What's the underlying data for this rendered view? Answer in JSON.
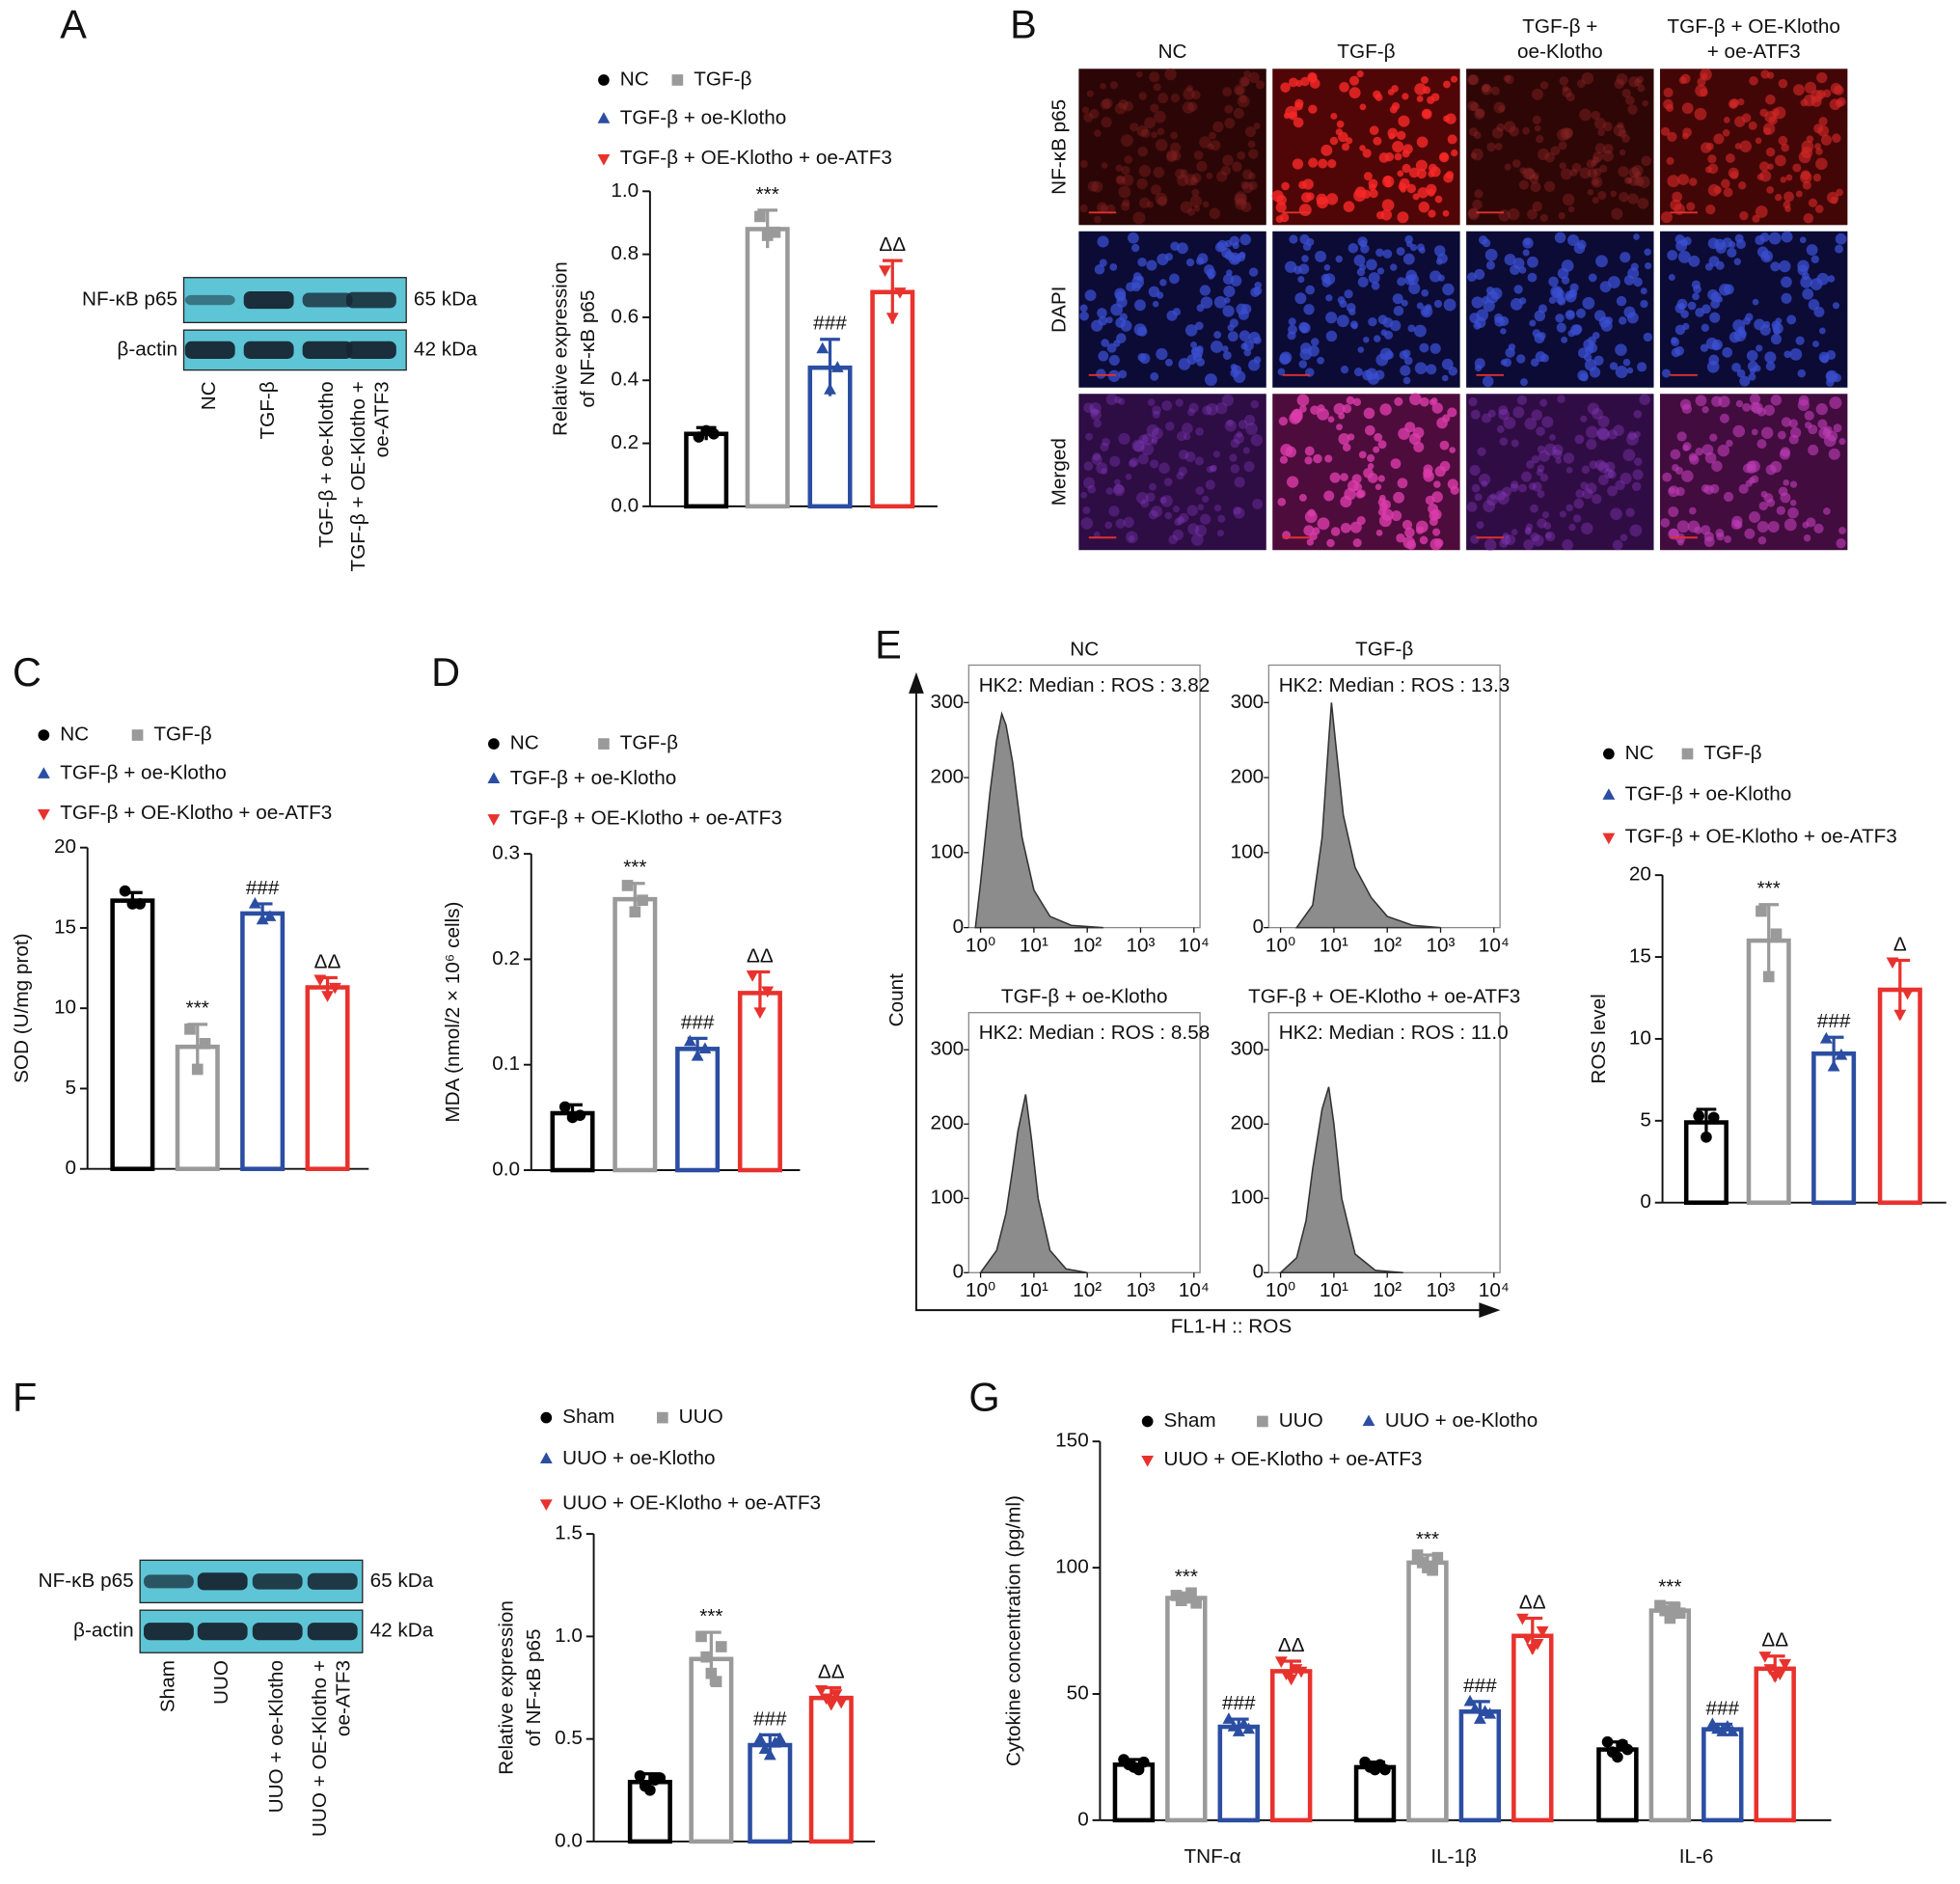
{
  "panel_letters": [
    "A",
    "B",
    "C",
    "D",
    "E",
    "F",
    "G"
  ],
  "blots": [
    {
      "rows": [
        {
          "label": "NF-κB p65",
          "size": "65 kDa"
        },
        {
          "label": "β-actin",
          "size": "42 kDa"
        }
      ],
      "lanes": [
        [
          "NC"
        ],
        [
          "TGF-β"
        ],
        [
          "TGF-β + oe-Klotho"
        ],
        [
          "TGF-β + OE-Klotho +",
          "oe-ATF3"
        ]
      ]
    },
    {
      "rows": [
        {
          "label": "NF-κB p65",
          "size": "65 kDa"
        },
        {
          "label": "β-actin",
          "size": "42 kDa"
        }
      ],
      "lanes": [
        [
          "Sham"
        ],
        [
          "UUO"
        ],
        [
          "UUO + oe-Klotho"
        ],
        [
          "UUO + OE-Klotho +",
          "oe-ATF3"
        ]
      ]
    }
  ],
  "micrographs": {
    "columns": [
      [
        "NC"
      ],
      [
        "TGF-β"
      ],
      [
        "TGF-β +",
        "oe-Klotho"
      ],
      [
        "TGF-β + OE-Klotho",
        "+ oe-ATF3"
      ]
    ],
    "rows": [
      "NF-κB p65",
      "DAPI",
      "Merged"
    ]
  },
  "flow_axes": {
    "ylabel": "Count",
    "xlabel": "FL1-H :: ROS"
  },
  "chart_data": [
    {
      "type": "bar",
      "ylabel": [
        "Relative expression",
        "of NF-κB p65"
      ],
      "ylim": [
        0,
        1.0
      ],
      "yticks": [
        {
          "value": 0,
          "label": "0.0"
        },
        0.2,
        0.4,
        0.6,
        0.8,
        {
          "value": 1,
          "label": "1.0"
        }
      ],
      "series": [
        {
          "name": "NC",
          "color": "#000000",
          "marker": "circle",
          "values": [
            0.23
          ],
          "errors": [
            0.02
          ],
          "points": [
            0.22,
            0.24,
            0.23
          ]
        },
        {
          "name": "TGF-β",
          "color": "#9a9a9a",
          "marker": "square",
          "values": [
            0.88
          ],
          "errors": [
            0.06
          ],
          "points": [
            0.92,
            0.86,
            0.87
          ],
          "annotation": "***"
        },
        {
          "name": "TGF-β + oe-Klotho",
          "color": "#2b4ea2",
          "marker": "triangle-up",
          "values": [
            0.44
          ],
          "errors": [
            0.09
          ],
          "points": [
            0.5,
            0.37,
            0.44
          ],
          "annotation": "###"
        },
        {
          "name": "TGF-β + OE-Klotho + oe-ATF3",
          "color": "#e8322d",
          "marker": "triangle-down",
          "values": [
            0.68
          ],
          "errors": [
            0.1
          ],
          "points": [
            0.75,
            0.6,
            0.68
          ],
          "annotation": "ΔΔ"
        }
      ]
    },
    {
      "type": "bar",
      "ylabel": [
        "SOD (U/mg prot)"
      ],
      "ylim": [
        0,
        20
      ],
      "yticks": [
        0,
        5,
        10,
        15,
        20
      ],
      "series": [
        {
          "name": "NC",
          "color": "#000000",
          "marker": "circle",
          "values": [
            16.7
          ],
          "errors": [
            0.5
          ],
          "points": [
            17.3,
            16.5,
            16.5
          ]
        },
        {
          "name": "TGF-β",
          "color": "#9a9a9a",
          "marker": "square",
          "values": [
            7.6
          ],
          "errors": [
            1.4
          ],
          "points": [
            8.7,
            6.2,
            7.8
          ],
          "annotation": "***"
        },
        {
          "name": "TGF-β + oe-Klotho",
          "color": "#2b4ea2",
          "marker": "triangle-up",
          "values": [
            15.9
          ],
          "errors": [
            0.6
          ],
          "points": [
            16.5,
            15.5,
            15.7
          ],
          "annotation": "###"
        },
        {
          "name": "TGF-β + OE-Klotho + oe-ATF3",
          "color": "#e8322d",
          "marker": "triangle-down",
          "values": [
            11.3
          ],
          "errors": [
            0.6
          ],
          "points": [
            11.8,
            10.8,
            11.3
          ],
          "annotation": "ΔΔ"
        }
      ]
    },
    {
      "type": "bar",
      "ylabel": [
        "MDA (nmol/2 × 10⁶ cells)"
      ],
      "ylim": [
        0,
        0.3
      ],
      "yticks": [
        {
          "value": 0,
          "label": "0.0"
        },
        0.1,
        0.2,
        0.3
      ],
      "series": [
        {
          "name": "NC",
          "color": "#000000",
          "marker": "circle",
          "values": [
            0.054
          ],
          "errors": [
            0.008
          ],
          "points": [
            0.06,
            0.05,
            0.052
          ]
        },
        {
          "name": "TGF-β",
          "color": "#9a9a9a",
          "marker": "square",
          "values": [
            0.257
          ],
          "errors": [
            0.015
          ],
          "points": [
            0.27,
            0.245,
            0.256
          ],
          "annotation": "***"
        },
        {
          "name": "TGF-β + oe-Klotho",
          "color": "#2b4ea2",
          "marker": "triangle-up",
          "values": [
            0.115
          ],
          "errors": [
            0.01
          ],
          "points": [
            0.122,
            0.108,
            0.115
          ],
          "annotation": "###"
        },
        {
          "name": "TGF-β + OE-Klotho + oe-ATF3",
          "color": "#e8322d",
          "marker": "triangle-down",
          "values": [
            0.168
          ],
          "errors": [
            0.02
          ],
          "points": [
            0.185,
            0.15,
            0.17
          ],
          "annotation": "ΔΔ"
        }
      ]
    },
    {
      "type": "area",
      "title": "NC",
      "annotation": "HK2: Median : ROS : 3.82",
      "log_x": true,
      "xlim": [
        0.6,
        13000
      ],
      "ylim": [
        0,
        350
      ],
      "xticks": [
        {
          "value": 1,
          "label": "10⁰"
        },
        {
          "value": 10,
          "label": "10¹"
        },
        {
          "value": 100,
          "label": "10²"
        },
        {
          "value": 1000,
          "label": "10³"
        },
        {
          "value": 10000,
          "label": "10⁴"
        }
      ],
      "yticks": [
        0,
        100,
        200,
        300
      ],
      "color": "#8c8c8c",
      "x": [
        0.8,
        1,
        1.5,
        2,
        2.5,
        3,
        4,
        6,
        10,
        20,
        50,
        200
      ],
      "values": [
        0,
        60,
        180,
        250,
        285,
        270,
        220,
        120,
        50,
        15,
        3,
        0
      ]
    },
    {
      "type": "area",
      "title": "TGF-β",
      "annotation": "HK2: Median : ROS : 13.3",
      "log_x": true,
      "xlim": [
        0.6,
        13000
      ],
      "ylim": [
        0,
        350
      ],
      "xticks": [
        {
          "value": 1,
          "label": "10⁰"
        },
        {
          "value": 10,
          "label": "10¹"
        },
        {
          "value": 100,
          "label": "10²"
        },
        {
          "value": 1000,
          "label": "10³"
        },
        {
          "value": 10000,
          "label": "10⁴"
        }
      ],
      "yticks": [
        0,
        100,
        200,
        300
      ],
      "color": "#8c8c8c",
      "x": [
        2,
        4,
        6,
        8,
        9,
        11,
        15,
        25,
        50,
        100,
        300,
        1000
      ],
      "values": [
        0,
        30,
        120,
        250,
        300,
        240,
        150,
        80,
        40,
        15,
        3,
        0
      ]
    },
    {
      "type": "area",
      "title": "TGF-β + oe-Klotho",
      "annotation": "HK2: Median : ROS : 8.58",
      "log_x": true,
      "xlim": [
        0.6,
        13000
      ],
      "ylim": [
        0,
        350
      ],
      "xticks": [
        {
          "value": 1,
          "label": "10⁰"
        },
        {
          "value": 10,
          "label": "10¹"
        },
        {
          "value": 100,
          "label": "10²"
        },
        {
          "value": 1000,
          "label": "10³"
        },
        {
          "value": 10000,
          "label": "10⁴"
        }
      ],
      "yticks": [
        0,
        100,
        200,
        300
      ],
      "color": "#8c8c8c",
      "x": [
        1,
        2,
        3,
        4,
        5,
        7,
        9,
        12,
        20,
        40,
        100
      ],
      "values": [
        0,
        30,
        80,
        140,
        190,
        240,
        180,
        100,
        30,
        5,
        0
      ]
    },
    {
      "type": "area",
      "title": "TGF-β + OE-Klotho + oe-ATF3",
      "annotation": "HK2: Median : ROS : 11.0",
      "log_x": true,
      "xlim": [
        0.6,
        13000
      ],
      "ylim": [
        0,
        350
      ],
      "xticks": [
        {
          "value": 1,
          "label": "10⁰"
        },
        {
          "value": 10,
          "label": "10¹"
        },
        {
          "value": 100,
          "label": "10²"
        },
        {
          "value": 1000,
          "label": "10³"
        },
        {
          "value": 10000,
          "label": "10⁴"
        }
      ],
      "yticks": [
        0,
        100,
        200,
        300
      ],
      "color": "#8c8c8c",
      "x": [
        1,
        2,
        3,
        4,
        6,
        8,
        10,
        14,
        25,
        60,
        200
      ],
      "values": [
        0,
        20,
        70,
        140,
        220,
        250,
        200,
        100,
        25,
        3,
        0
      ]
    },
    {
      "type": "bar",
      "ylabel": [
        "ROS level"
      ],
      "ylim": [
        0,
        20
      ],
      "yticks": [
        0,
        5,
        10,
        15,
        20
      ],
      "series": [
        {
          "name": "NC",
          "color": "#000000",
          "marker": "circle",
          "values": [
            4.9
          ],
          "errors": [
            0.8
          ],
          "points": [
            5.3,
            4.0,
            5.2
          ]
        },
        {
          "name": "TGF-β",
          "color": "#9a9a9a",
          "marker": "square",
          "values": [
            16.0
          ],
          "errors": [
            2.2
          ],
          "points": [
            17.8,
            13.8,
            16.4
          ],
          "annotation": "***"
        },
        {
          "name": "TGF-β + oe-Klotho",
          "color": "#2b4ea2",
          "marker": "triangle-up",
          "values": [
            9.1
          ],
          "errors": [
            1.0
          ],
          "points": [
            10.0,
            8.3,
            9.0
          ],
          "annotation": "###"
        },
        {
          "name": "TGF-β + OE-Klotho + oe-ATF3",
          "color": "#e8322d",
          "marker": "triangle-down",
          "values": [
            13.0
          ],
          "errors": [
            1.8
          ],
          "points": [
            14.7,
            11.5,
            12.8
          ],
          "annotation": "Δ"
        }
      ]
    },
    {
      "type": "bar",
      "ylabel": [
        "Relative expression",
        "of NF-κB p65"
      ],
      "ylim": [
        0,
        1.5
      ],
      "yticks": [
        {
          "value": 0,
          "label": "0.0"
        },
        0.5,
        {
          "value": 1,
          "label": "1.0"
        },
        1.5
      ],
      "series": [
        {
          "name": "Sham",
          "color": "#000000",
          "marker": "circle",
          "values": [
            0.29
          ],
          "errors": [
            0.04
          ],
          "points": [
            0.32,
            0.27,
            0.25,
            0.3,
            0.31
          ]
        },
        {
          "name": "UUO",
          "color": "#9a9a9a",
          "marker": "square",
          "values": [
            0.89
          ],
          "errors": [
            0.13
          ],
          "points": [
            1.0,
            0.9,
            0.82,
            0.78,
            0.95
          ],
          "annotation": "***"
        },
        {
          "name": "UUO + oe-Klotho",
          "color": "#2b4ea2",
          "marker": "triangle-up",
          "values": [
            0.47
          ],
          "errors": [
            0.05
          ],
          "points": [
            0.5,
            0.45,
            0.42,
            0.48,
            0.5
          ],
          "annotation": "###"
        },
        {
          "name": "UUO + OE-Klotho + oe-ATF3",
          "color": "#e8322d",
          "marker": "triangle-down",
          "values": [
            0.7
          ],
          "errors": [
            0.05
          ],
          "points": [
            0.74,
            0.7,
            0.67,
            0.72,
            0.68
          ],
          "annotation": "ΔΔ"
        }
      ]
    },
    {
      "type": "grouped-bar",
      "ylabel": [
        "Cytokine concentration (pg/ml)"
      ],
      "ylim": [
        0,
        150
      ],
      "yticks": [
        0,
        50,
        100,
        150
      ],
      "categories": [
        "TNF-α",
        "IL-1β",
        "IL-6"
      ],
      "series": [
        {
          "name": "Sham",
          "color": "#000000",
          "marker": "circle",
          "values": [
            22,
            21,
            28
          ],
          "errors": [
            2,
            2,
            3
          ],
          "points": [
            [
              24,
              22,
              21,
              20,
              23
            ],
            [
              23,
              21,
              20,
              22,
              20
            ],
            [
              31,
              27,
              25,
              30,
              28
            ]
          ]
        },
        {
          "name": "UUO",
          "color": "#9a9a9a",
          "marker": "square",
          "values": [
            88,
            102,
            83
          ],
          "errors": [
            2,
            3,
            3
          ],
          "points": [
            [
              89,
              87,
              88,
              90,
              86
            ],
            [
              105,
              102,
              100,
              99,
              104
            ],
            [
              85,
              83,
              80,
              84,
              82
            ]
          ],
          "annotations": [
            "***",
            "***",
            "***"
          ]
        },
        {
          "name": "UUO + oe-Klotho",
          "color": "#2b4ea2",
          "marker": "triangle-up",
          "values": [
            37,
            43,
            36
          ],
          "errors": [
            3,
            4,
            2
          ],
          "points": [
            [
              40,
              37,
              35,
              38,
              36
            ],
            [
              47,
              44,
              40,
              43,
              42
            ],
            [
              38,
              36,
              35,
              37,
              35
            ]
          ],
          "annotations": [
            "###",
            "###",
            "###"
          ]
        },
        {
          "name": "UUO + OE-Klotho + oe-ATF3",
          "color": "#e8322d",
          "marker": "triangle-down",
          "values": [
            59,
            73,
            60
          ],
          "errors": [
            4,
            7,
            5
          ],
          "points": [
            [
              63,
              58,
              56,
              60,
              59
            ],
            [
              80,
              72,
              68,
              70,
              75
            ],
            [
              65,
              60,
              57,
              58,
              62
            ]
          ],
          "annotations": [
            "ΔΔ",
            "ΔΔ",
            "ΔΔ"
          ]
        }
      ]
    }
  ]
}
